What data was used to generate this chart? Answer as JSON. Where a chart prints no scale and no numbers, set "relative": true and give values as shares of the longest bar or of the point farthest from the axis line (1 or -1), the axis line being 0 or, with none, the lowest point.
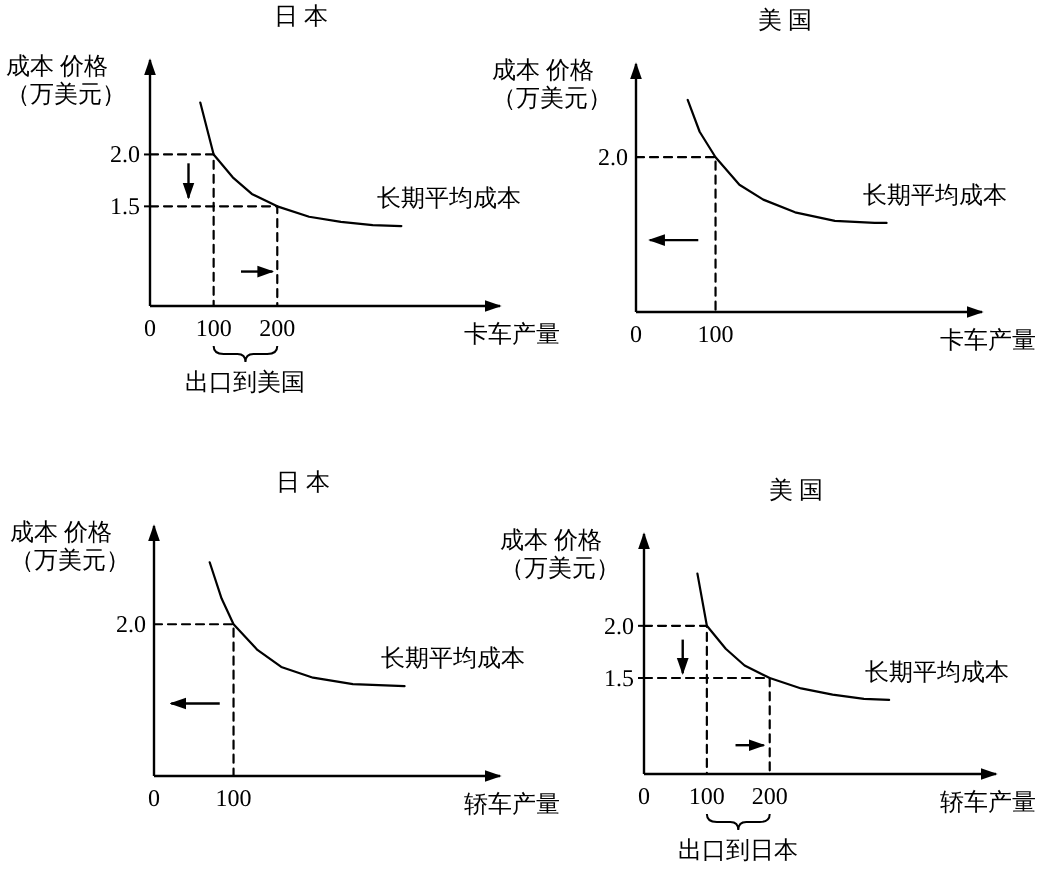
{
  "chart_data": [
    {
      "type": "line",
      "title": "日 本",
      "xlabel": "卡车产量",
      "ylabel": "成本 价格（万美元）",
      "xlim": [
        0,
        550
      ],
      "ylim": [
        0.54,
        2.91
      ],
      "xticks": [
        0,
        100,
        200
      ],
      "yticks": [
        1.5,
        {
          "value": 2.0,
          "label": "2.0"
        }
      ],
      "annotations": [
        "出口到美国"
      ],
      "series": [
        {
          "name": "长期平均成本",
          "color": "#000000",
          "x": [
            79,
            100,
            130,
            160,
            200,
            250,
            300,
            350,
            395
          ],
          "values": [
            2.5,
            2.0,
            1.78,
            1.62,
            1.5,
            1.4,
            1.35,
            1.32,
            1.31
          ]
        },
        {
          "color": "#000000",
          "line_style": "dashed",
          "x": [
            0,
            100,
            100
          ],
          "values": [
            2.0,
            2.0,
            0.54
          ]
        },
        {
          "color": "#000000",
          "line_style": "dashed",
          "x": [
            0,
            200,
            200
          ],
          "values": [
            1.5,
            1.5,
            0.54
          ]
        }
      ]
    },
    {
      "type": "line",
      "relative": true,
      "title": "美 国",
      "xlabel": "卡车产量",
      "ylabel": "成本 价格（万美元）",
      "xlim": [
        0,
        435
      ],
      "xticks": [
        0,
        100
      ],
      "annotations": [
        {
          "text": "2.0",
          "x": 0,
          "y": 0.73
        }
      ],
      "series": [
        {
          "name": "长期平均成本",
          "color": "#000000",
          "x": [
            65,
            80,
            100,
            130,
            160,
            200,
            250,
            300,
            315
          ],
          "values": [
            1,
            0.85,
            0.73,
            0.6,
            0.53,
            0.47,
            0.43,
            0.42,
            0.42
          ]
        },
        {
          "color": "#000000",
          "line_style": "dashed",
          "x": [
            0,
            100,
            100
          ],
          "values": [
            0.73,
            0.73,
            0
          ]
        }
      ]
    },
    {
      "type": "line",
      "relative": true,
      "title": "日 本",
      "xlabel": "轿车产量",
      "ylabel": "成本 价格（万美元）",
      "xlim": [
        0,
        435
      ],
      "xticks": [
        0,
        100
      ],
      "annotations": [
        {
          "text": "2.0",
          "x": 0,
          "y": 0.71
        }
      ],
      "series": [
        {
          "name": "长期平均成本",
          "color": "#000000",
          "x": [
            70,
            85,
            100,
            130,
            160,
            200,
            250,
            315
          ],
          "values": [
            1,
            0.83,
            0.71,
            0.59,
            0.51,
            0.46,
            0.43,
            0.42
          ]
        },
        {
          "color": "#000000",
          "line_style": "dashed",
          "x": [
            0,
            100,
            100
          ],
          "values": [
            0.71,
            0.71,
            0
          ]
        }
      ]
    },
    {
      "type": "line",
      "title": "美 国",
      "xlabel": "轿车产量",
      "ylabel": "成本 价格（万美元）",
      "xlim": [
        0,
        560
      ],
      "ylim": [
        0.58,
        2.88
      ],
      "xticks": [
        0,
        100,
        200
      ],
      "yticks": [
        1.5,
        {
          "value": 2.0,
          "label": "2.0"
        }
      ],
      "annotations": [
        "出口到日本"
      ],
      "series": [
        {
          "name": "长期平均成本",
          "color": "#000000",
          "x": [
            85,
            100,
            130,
            160,
            200,
            250,
            300,
            350,
            390
          ],
          "values": [
            2.5,
            2.0,
            1.78,
            1.62,
            1.5,
            1.4,
            1.34,
            1.3,
            1.29
          ]
        },
        {
          "color": "#000000",
          "line_style": "dashed",
          "x": [
            0,
            100,
            100
          ],
          "values": [
            2.0,
            2.0,
            0.58
          ]
        },
        {
          "color": "#000000",
          "line_style": "dashed",
          "x": [
            0,
            200,
            200
          ],
          "values": [
            1.5,
            1.5,
            0.58
          ]
        }
      ]
    }
  ]
}
